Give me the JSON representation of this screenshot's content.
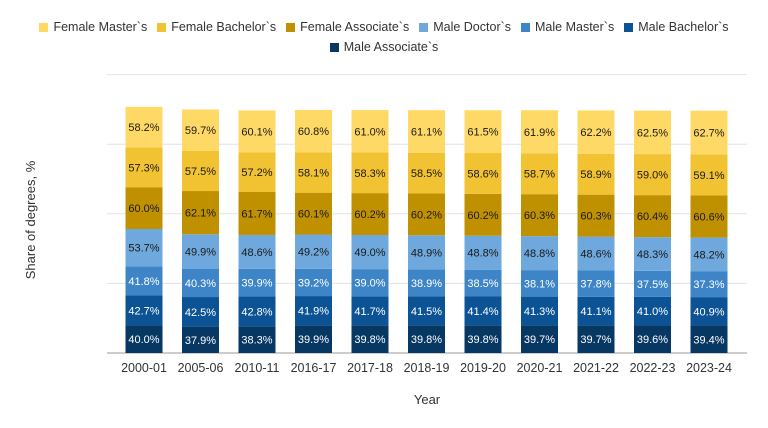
{
  "chart_data": {
    "type": "bar",
    "stacked": true,
    "xlabel": "Year",
    "ylabel": "Share of degrees, %",
    "ylim": [
      0,
      400
    ],
    "grid": true,
    "legend_position": "top",
    "categories": [
      "2000-01",
      "2005-06",
      "2010-11",
      "2016-17",
      "2017-18",
      "2018-19",
      "2019-20",
      "2020-21",
      "2021-22",
      "2022-23",
      "2023-24"
    ],
    "series": [
      {
        "name": "Male Associate`s",
        "color": "#073763",
        "label_color": "#ffffff",
        "values": [
          40.0,
          37.9,
          38.3,
          39.9,
          39.8,
          39.8,
          39.8,
          39.7,
          39.7,
          39.6,
          39.4
        ]
      },
      {
        "name": "Male Bachelor`s",
        "color": "#0b5394",
        "label_color": "#ffffff",
        "values": [
          42.7,
          42.5,
          42.8,
          41.9,
          41.7,
          41.5,
          41.4,
          41.3,
          41.1,
          41.0,
          40.9
        ]
      },
      {
        "name": "Male Master`s",
        "color": "#3d85c6",
        "label_color": "#ffffff",
        "values": [
          41.8,
          40.3,
          39.9,
          39.2,
          39.0,
          38.9,
          38.5,
          38.1,
          37.8,
          37.5,
          37.3
        ]
      },
      {
        "name": "Male Doctor`s",
        "color": "#6fa8dc",
        "label_color": "#1a1a1a",
        "values": [
          53.7,
          49.9,
          48.6,
          49.2,
          49.0,
          48.9,
          48.8,
          48.8,
          48.6,
          48.3,
          48.2
        ]
      },
      {
        "name": "Female Associate`s",
        "color": "#bf9000",
        "label_color": "#1a1a1a",
        "values": [
          60.0,
          62.1,
          61.7,
          60.1,
          60.2,
          60.2,
          60.2,
          60.3,
          60.3,
          60.4,
          60.6
        ]
      },
      {
        "name": "Female Bachelor`s",
        "color": "#f1c232",
        "label_color": "#1a1a1a",
        "values": [
          57.3,
          57.5,
          57.2,
          58.1,
          58.3,
          58.5,
          58.6,
          58.7,
          58.9,
          59.0,
          59.1
        ]
      },
      {
        "name": "Female Master`s",
        "color": "#ffd966",
        "label_color": "#1a1a1a",
        "values": [
          58.2,
          59.7,
          60.1,
          60.8,
          61.0,
          61.1,
          61.5,
          61.9,
          62.2,
          62.5,
          62.7
        ]
      }
    ],
    "legend_order": [
      6,
      5,
      4,
      3,
      2,
      1,
      0
    ]
  }
}
